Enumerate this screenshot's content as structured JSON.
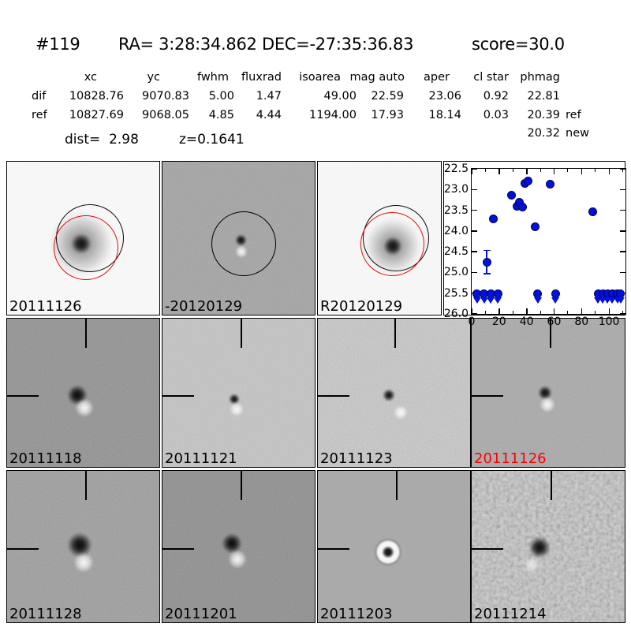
{
  "title": {
    "number": "#119",
    "radec": "RA= 3:28:34.862 DEC=-27:35:36.83",
    "score": "score=30.0"
  },
  "photometry_table": {
    "headers": [
      "xc",
      "yc",
      "fwhm",
      "fluxrad",
      "isoarea",
      "mag auto",
      "aper",
      "cl star",
      "phmag"
    ],
    "rows": [
      {
        "label": "dif",
        "values": [
          "10828.76",
          "9070.83",
          "5.00",
          "1.47",
          "49.00",
          "22.59",
          "23.06",
          "0.92",
          "22.81"
        ],
        "suffix": ""
      },
      {
        "label": "ref",
        "values": [
          "10827.69",
          "9068.05",
          "4.85",
          "4.44",
          "1194.00",
          "17.93",
          "18.14",
          "0.03",
          "20.39"
        ],
        "suffix": "ref"
      }
    ],
    "extra_row": {
      "value": "20.32",
      "suffix": "new"
    },
    "dist": "dist=  2.98",
    "redshift": "z=0.1641"
  },
  "chart_data": {
    "type": "scatter",
    "title": "",
    "xlabel": "",
    "ylabel": "",
    "x_range": [
      0,
      112
    ],
    "y_range": [
      22.5,
      26.0
    ],
    "y_inverted": true,
    "x_ticks": [
      0,
      20,
      40,
      60,
      80,
      100
    ],
    "x_tick_labels": [
      "0",
      "20",
      "40",
      "60",
      "80",
      "100"
    ],
    "x_minor_ticks": [
      10,
      30,
      50,
      70,
      90,
      110
    ],
    "y_ticks": [
      22.5,
      23.0,
      23.5,
      24.0,
      24.5,
      25.0,
      25.5,
      26.0
    ],
    "y_tick_labels": [
      "22.5",
      "23.0",
      "23.5",
      "24.0",
      "24.5",
      "25.0",
      "25.5",
      "26.0"
    ],
    "marker_color": "#0011dd",
    "detections": [
      {
        "x": 11,
        "mag": 24.75,
        "err": 0.28
      },
      {
        "x": 16,
        "mag": 23.7
      },
      {
        "x": 29,
        "mag": 23.13
      },
      {
        "x": 33,
        "mag": 23.4
      },
      {
        "x": 35,
        "mag": 23.3
      },
      {
        "x": 37,
        "mag": 23.43
      },
      {
        "x": 39,
        "mag": 22.85
      },
      {
        "x": 41,
        "mag": 22.8
      },
      {
        "x": 46,
        "mag": 23.89
      },
      {
        "x": 57,
        "mag": 22.87
      },
      {
        "x": 88,
        "mag": 23.54
      }
    ],
    "upper_limit_mag": 25.52,
    "upper_limit_x": [
      4,
      9,
      14,
      19,
      48,
      61,
      92,
      95.5,
      99,
      102.5,
      106,
      108.5
    ]
  },
  "stamps": [
    {
      "label": "20111126",
      "label_color": "#000000"
    },
    {
      "label": "-20120129",
      "label_color": "#000000"
    },
    {
      "label": "R20120129",
      "label_color": "#000000"
    },
    {
      "label": "20111118",
      "label_color": "#000000"
    },
    {
      "label": "20111121",
      "label_color": "#000000"
    },
    {
      "label": "20111123",
      "label_color": "#000000"
    },
    {
      "label": "20111126",
      "label_color": "#ff0000"
    },
    {
      "label": "20111128",
      "label_color": "#000000"
    },
    {
      "label": "20111201",
      "label_color": "#000000"
    },
    {
      "label": "20111203",
      "label_color": "#000000"
    },
    {
      "label": "20111214",
      "label_color": "#000000"
    }
  ]
}
